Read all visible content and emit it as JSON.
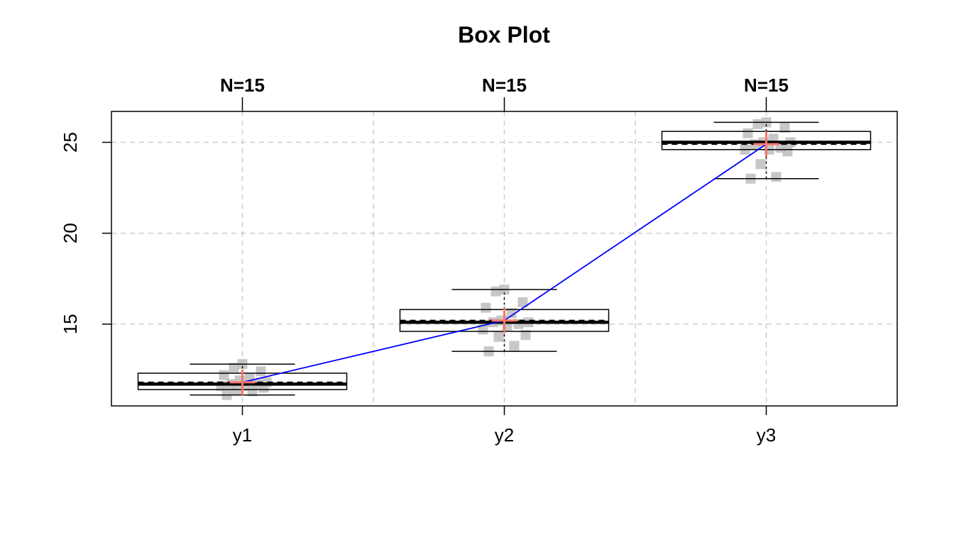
{
  "chart_data": {
    "type": "box",
    "title": "Box Plot",
    "xlabel": "",
    "ylabel": "",
    "ylim": [
      10.5,
      26.7
    ],
    "y_ticks": [
      15,
      20,
      25
    ],
    "grid": true,
    "categories": [
      "y1",
      "y2",
      "y3"
    ],
    "group_counts": [
      "N=15",
      "N=15",
      "N=15"
    ],
    "boxes": [
      {
        "name": "y1",
        "whisker_low": 11.1,
        "q1": 11.4,
        "median": 11.7,
        "q3": 12.3,
        "whisker_high": 12.8,
        "mean": 11.8
      },
      {
        "name": "y2",
        "whisker_low": 13.5,
        "q1": 14.6,
        "median": 15.1,
        "q3": 15.8,
        "whisker_high": 16.9,
        "mean": 15.2
      },
      {
        "name": "y3",
        "whisker_low": 23.0,
        "q1": 24.6,
        "median": 25.0,
        "q3": 25.6,
        "whisker_high": 26.1,
        "mean": 24.9
      }
    ],
    "points": [
      {
        "group": "y1",
        "values": [
          11.1,
          11.3,
          11.4,
          11.5,
          11.6,
          11.6,
          11.7,
          11.7,
          11.8,
          11.9,
          12.0,
          12.2,
          12.4,
          12.6,
          12.8
        ]
      },
      {
        "group": "y2",
        "values": [
          13.5,
          13.8,
          14.3,
          14.4,
          14.7,
          14.9,
          15.0,
          15.1,
          15.1,
          15.2,
          15.6,
          15.9,
          16.2,
          16.8,
          16.9
        ]
      },
      {
        "group": "y3",
        "values": [
          23.0,
          23.1,
          23.8,
          24.5,
          24.6,
          24.6,
          24.7,
          24.9,
          25.0,
          25.0,
          25.2,
          25.5,
          25.8,
          26.0,
          26.1
        ]
      }
    ],
    "mean_line_color": "#0000ff",
    "mean_marker_color": "#f8766d",
    "point_color": "#bdbdbd",
    "grid_color": "#cccccc"
  }
}
